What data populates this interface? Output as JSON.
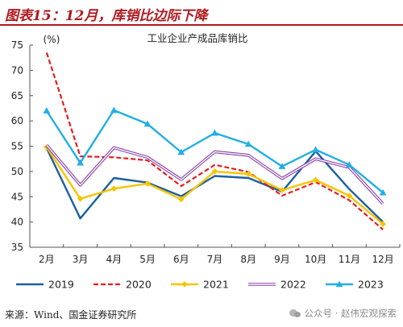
{
  "figure": {
    "title": "图表15：12月，库销比边际下降",
    "source": "来源：Wind、国金证券研究所",
    "watermark": "公众号 · 赵伟宏观探索",
    "watermark_icon": "wechat-icon"
  },
  "chart_data": {
    "type": "line",
    "title": "工业企业产成品库销比",
    "ylabel": "(%)",
    "xlabel": "",
    "categories": [
      "2月",
      "3月",
      "4月",
      "5月",
      "6月",
      "7月",
      "8月",
      "9月",
      "10月",
      "11月",
      "12月"
    ],
    "ylim": [
      35,
      75
    ],
    "yticks": [
      35,
      40,
      45,
      50,
      55,
      60,
      65,
      70,
      75
    ],
    "grid": false,
    "legend_position": "bottom",
    "series": [
      {
        "name": "2019",
        "color": "#1d5fa0",
        "dash": "solid",
        "marker": "none",
        "values": [
          54.6,
          40.7,
          48.7,
          47.8,
          45.1,
          49.1,
          48.7,
          46.0,
          54.0,
          46.5,
          40.0
        ]
      },
      {
        "name": "2020",
        "color": "#e41f1f",
        "dash": "dashed",
        "marker": "none",
        "values": [
          73.5,
          53.0,
          52.8,
          52.2,
          47.1,
          51.3,
          49.9,
          45.2,
          47.9,
          44.3,
          38.5
        ]
      },
      {
        "name": "2021",
        "color": "#f5c400",
        "dash": "solid",
        "marker": "diamond",
        "values": [
          54.8,
          44.6,
          46.6,
          47.6,
          44.5,
          50.0,
          49.5,
          46.3,
          48.3,
          45.2,
          39.6
        ]
      },
      {
        "name": "2022",
        "color": "#8a3ea6",
        "dash": "double",
        "marker": "none",
        "values": [
          55.2,
          47.3,
          54.7,
          52.8,
          48.4,
          53.9,
          53.2,
          48.6,
          52.5,
          50.8,
          43.6
        ]
      },
      {
        "name": "2023",
        "color": "#23aee4",
        "dash": "solid",
        "marker": "triangle",
        "values": [
          62.0,
          51.7,
          62.1,
          59.4,
          53.8,
          57.6,
          55.4,
          51.0,
          54.3,
          51.3,
          45.8
        ]
      }
    ]
  }
}
